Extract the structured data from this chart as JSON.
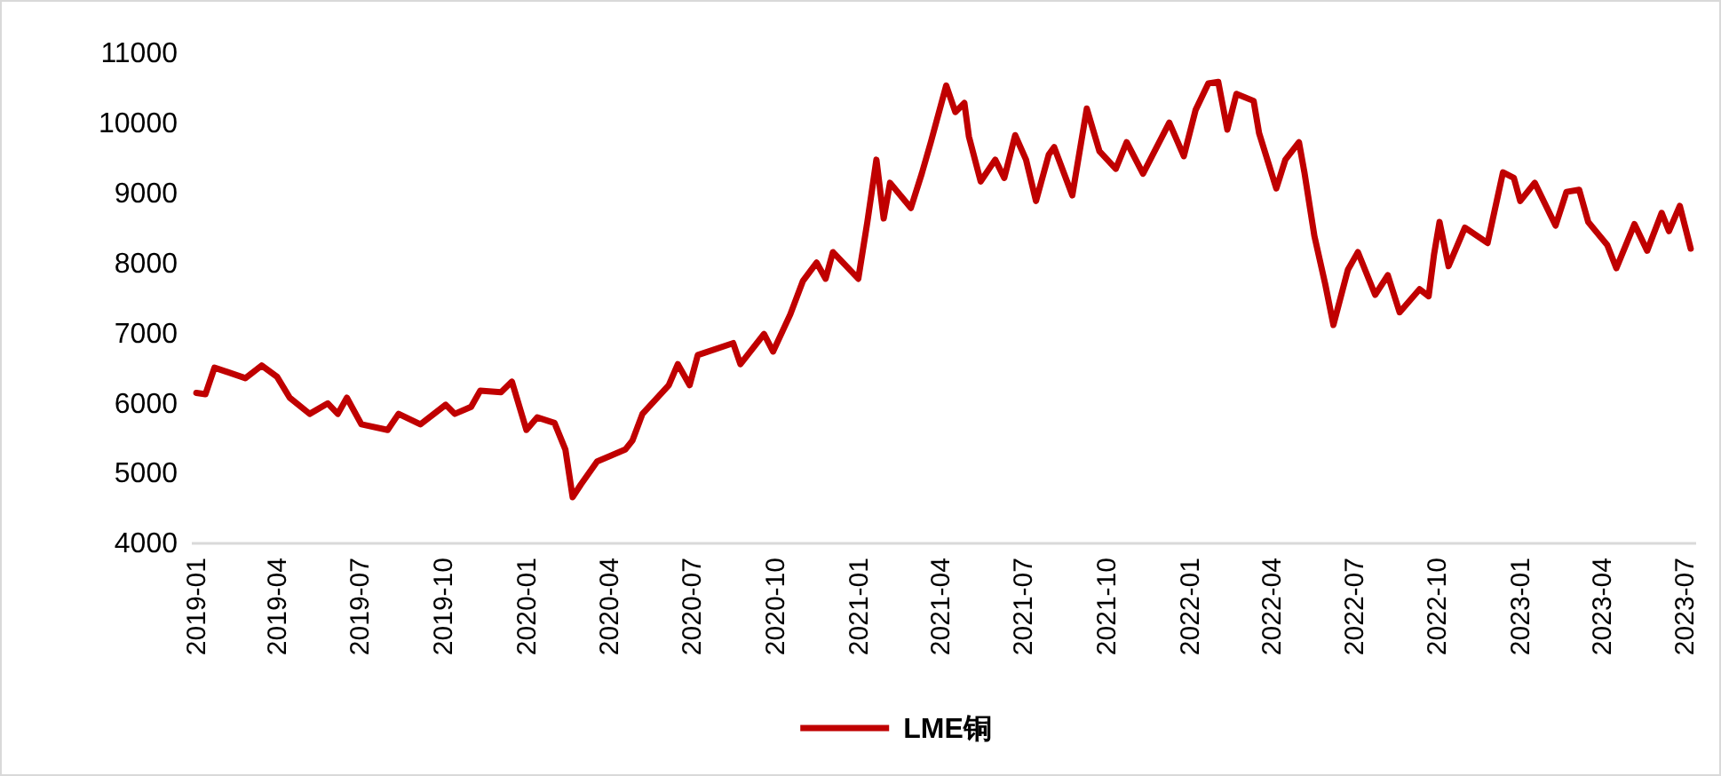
{
  "chart_data": {
    "type": "line",
    "grid": false,
    "legend": "bottom",
    "marker": "none",
    "line_style": "solid",
    "xlim": [
      "2018-12-28",
      "2023-07-14"
    ],
    "xticks": [
      "2019-01",
      "2019-04",
      "2019-07",
      "2019-10",
      "2020-01",
      "2020-04",
      "2020-07",
      "2020-10",
      "2021-01",
      "2021-04",
      "2021-07",
      "2021-10",
      "2022-01",
      "2022-04",
      "2022-07",
      "2022-10",
      "2023-01",
      "2023-04",
      "2023-07"
    ],
    "ylim": [
      4000,
      11000
    ],
    "yticks": [
      4000,
      5000,
      6000,
      7000,
      8000,
      9000,
      10000,
      11000
    ],
    "x": [
      "2019-01-02",
      "2019-01-12",
      "2019-01-22",
      "2019-02-25",
      "2019-03-15",
      "2019-04-01",
      "2019-04-15",
      "2019-05-07",
      "2019-05-27",
      "2019-06-07",
      "2019-06-17",
      "2019-07-03",
      "2019-08-01",
      "2019-08-13",
      "2019-09-06",
      "2019-10-04",
      "2019-10-14",
      "2019-11-01",
      "2019-11-11",
      "2019-12-04",
      "2019-12-16",
      "2020-01-01",
      "2020-01-13",
      "2020-02-01",
      "2020-02-13",
      "2020-02-21",
      "2020-03-01",
      "2020-03-19",
      "2020-04-19",
      "2020-04-27",
      "2020-05-08",
      "2020-06-06",
      "2020-06-16",
      "2020-06-29",
      "2020-07-08",
      "2020-08-16",
      "2020-08-24",
      "2020-09-19",
      "2020-09-29",
      "2020-10-18",
      "2020-11-01",
      "2020-11-16",
      "2020-11-26",
      "2020-12-04",
      "2021-01-01",
      "2021-01-11",
      "2021-01-21",
      "2021-01-29",
      "2021-02-05",
      "2021-02-28",
      "2021-03-12",
      "2021-03-22",
      "2021-04-08",
      "2021-04-18",
      "2021-04-28",
      "2021-05-03",
      "2021-05-16",
      "2021-06-01",
      "2021-06-11",
      "2021-06-23",
      "2021-07-05",
      "2021-07-16",
      "2021-07-30",
      "2021-08-05",
      "2021-08-25",
      "2021-09-10",
      "2021-09-24",
      "2021-10-12",
      "2021-10-24",
      "2021-11-11",
      "2021-12-10",
      "2021-12-26",
      "2022-01-08",
      "2022-01-22",
      "2022-02-02",
      "2022-02-12",
      "2022-02-22",
      "2022-03-13",
      "2022-03-19",
      "2022-04-07",
      "2022-04-17",
      "2022-05-02",
      "2022-05-08",
      "2022-05-19",
      "2022-05-31",
      "2022-06-09",
      "2022-06-25",
      "2022-07-06",
      "2022-07-25",
      "2022-08-08",
      "2022-08-21",
      "2022-09-12",
      "2022-09-22",
      "2022-09-28",
      "2022-10-04",
      "2022-10-14",
      "2022-11-01",
      "2022-11-26",
      "2022-12-13",
      "2022-12-25",
      "2023-01-01",
      "2023-01-17",
      "2023-02-09",
      "2023-02-21",
      "2023-03-07",
      "2023-03-17",
      "2023-04-07",
      "2023-04-17",
      "2023-05-07",
      "2023-05-21",
      "2023-06-06",
      "2023-06-14",
      "2023-06-26",
      "2023-07-08"
    ],
    "series": [
      {
        "name": "LME铜",
        "color": "#c00000",
        "values": [
          6150,
          6130,
          6510,
          6360,
          6540,
          6380,
          6080,
          5850,
          6000,
          5850,
          6080,
          5700,
          5620,
          5850,
          5700,
          5980,
          5850,
          5950,
          6180,
          6160,
          6310,
          5620,
          5800,
          5720,
          5340,
          4660,
          4840,
          5170,
          5340,
          5470,
          5850,
          6260,
          6560,
          6260,
          6690,
          6860,
          6560,
          6990,
          6740,
          7270,
          7750,
          8010,
          7780,
          8160,
          7780,
          8590,
          9480,
          8640,
          9150,
          8790,
          9280,
          9730,
          10540,
          10160,
          10290,
          9810,
          9170,
          9480,
          9220,
          9830,
          9480,
          8890,
          9550,
          9660,
          8970,
          10210,
          9600,
          9350,
          9730,
          9280,
          10010,
          9530,
          10190,
          10570,
          10590,
          9910,
          10420,
          10320,
          9860,
          9070,
          9480,
          9730,
          9300,
          8390,
          7700,
          7120,
          7910,
          8160,
          7550,
          7830,
          7300,
          7630,
          7530,
          8130,
          8590,
          7960,
          8510,
          8290,
          9300,
          9220,
          8890,
          9150,
          8540,
          9020,
          9050,
          8590,
          8260,
          7930,
          8560,
          8180,
          8720,
          8460,
          8820,
          8210
        ]
      }
    ]
  }
}
